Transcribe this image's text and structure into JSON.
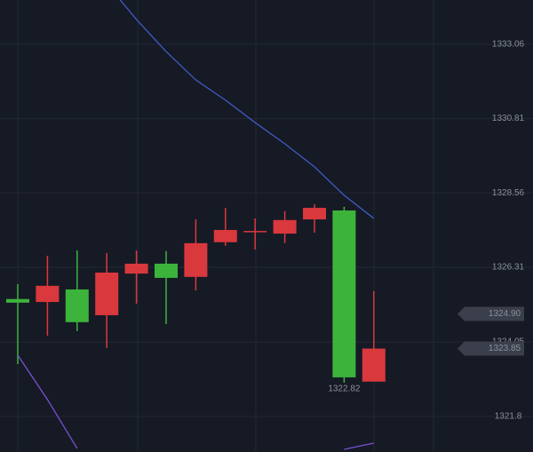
{
  "chart_data": {
    "type": "candlestick",
    "categories": [
      null,
      null,
      null,
      null,
      null,
      null,
      null,
      null,
      null,
      null,
      null,
      null,
      null
    ],
    "open": [
      1325.24,
      1325.75,
      1324.65,
      1326.15,
      1326.42,
      1325.99,
      1327.04,
      1327.44,
      1327.41,
      1327.74,
      1328.11,
      1322.98,
      1323.85
    ],
    "high": [
      1325.8,
      1326.66,
      1326.82,
      1326.74,
      1326.82,
      1326.8,
      1327.76,
      1328.11,
      1327.79,
      1328.01,
      1328.22,
      1328.14,
      1325.59
    ],
    "low": [
      1323.38,
      1324.24,
      1324.38,
      1323.87,
      1325.21,
      1324.59,
      1325.61,
      1326.96,
      1326.85,
      1327.04,
      1327.36,
      1322.82,
      1322.85
    ],
    "close": [
      1325.35,
      1325.26,
      1325.64,
      1324.86,
      1326.12,
      1326.42,
      1326.02,
      1327.07,
      1327.38,
      1327.33,
      1327.76,
      1328.03,
      1322.85
    ],
    "up_color": "#3cb43c",
    "down_color": "#d9383d",
    "lines": [
      {
        "color": "#3f5bc4",
        "values": [
          null,
          null,
          null,
          1334.89,
          1333.81,
          1332.84,
          1331.98,
          1331.37,
          1330.69,
          1330.05,
          1329.35,
          1328.49,
          1327.79
        ]
      },
      {
        "color": "#7a4fd6",
        "values": [
          1323.65,
          1322.31,
          1320.83,
          null,
          null,
          null,
          null,
          null,
          null,
          null,
          null,
          1320.8,
          1320.99
        ]
      }
    ],
    "ylim": [
      1320.72,
      1334.4
    ],
    "yticks": [
      1333.06,
      1330.81,
      1328.56,
      1326.31,
      1324.05,
      1321.8
    ],
    "grid": true,
    "price_tags": [
      {
        "value": 1324.9,
        "label": "1324.90"
      },
      {
        "value": 1323.85,
        "label": "1323.85"
      }
    ],
    "low_label": 1322.82
  }
}
